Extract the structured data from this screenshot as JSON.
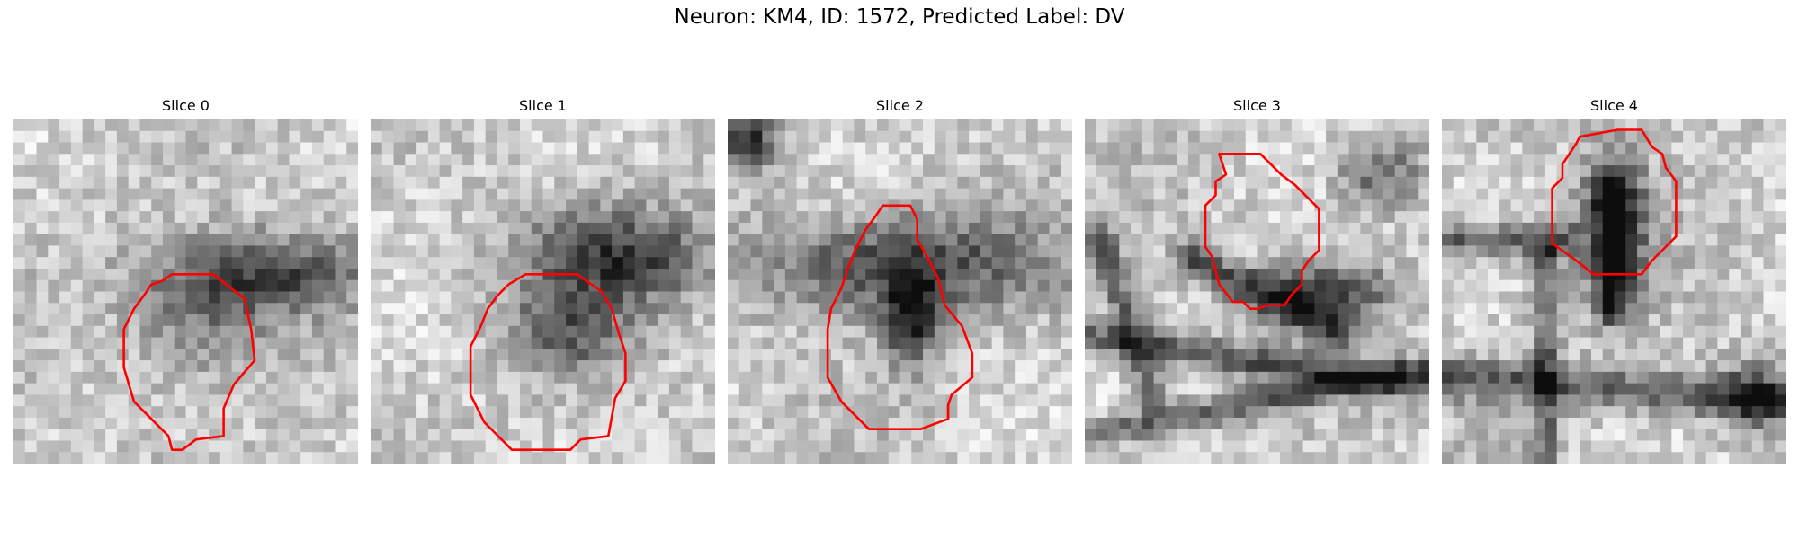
{
  "figure": {
    "title": "Neuron: KM4, ID: 1572, Predicted Label: DV"
  },
  "panels": [
    {
      "title": "Slice 0",
      "seed": 11,
      "dark_blobs": [
        [
          0.7,
          0.45,
          0.3,
          0.12,
          0.55
        ],
        [
          0.55,
          0.62,
          0.2,
          0.15,
          0.3
        ]
      ],
      "ridges": [],
      "contour": [
        [
          0.46,
          0.45
        ],
        [
          0.58,
          0.45
        ],
        [
          0.67,
          0.52
        ],
        [
          0.69,
          0.61
        ],
        [
          0.7,
          0.7
        ],
        [
          0.64,
          0.77
        ],
        [
          0.61,
          0.84
        ],
        [
          0.61,
          0.92
        ],
        [
          0.53,
          0.93
        ],
        [
          0.49,
          0.96
        ],
        [
          0.46,
          0.96
        ],
        [
          0.45,
          0.92
        ],
        [
          0.35,
          0.82
        ],
        [
          0.32,
          0.72
        ],
        [
          0.32,
          0.61
        ],
        [
          0.35,
          0.55
        ],
        [
          0.38,
          0.51
        ],
        [
          0.4,
          0.48
        ],
        [
          0.43,
          0.47
        ]
      ]
    },
    {
      "title": "Slice 1",
      "seed": 23,
      "dark_blobs": [
        [
          0.73,
          0.4,
          0.28,
          0.14,
          0.55
        ],
        [
          0.57,
          0.62,
          0.17,
          0.13,
          0.4
        ]
      ],
      "ridges": [],
      "contour": [
        [
          0.45,
          0.45
        ],
        [
          0.6,
          0.45
        ],
        [
          0.67,
          0.5
        ],
        [
          0.7,
          0.55
        ],
        [
          0.72,
          0.62
        ],
        [
          0.74,
          0.68
        ],
        [
          0.74,
          0.76
        ],
        [
          0.71,
          0.81
        ],
        [
          0.69,
          0.92
        ],
        [
          0.61,
          0.93
        ],
        [
          0.58,
          0.96
        ],
        [
          0.41,
          0.96
        ],
        [
          0.33,
          0.88
        ],
        [
          0.29,
          0.8
        ],
        [
          0.29,
          0.66
        ],
        [
          0.32,
          0.6
        ],
        [
          0.34,
          0.55
        ],
        [
          0.37,
          0.51
        ],
        [
          0.4,
          0.48
        ]
      ]
    },
    {
      "title": "Slice 2",
      "seed": 37,
      "dark_blobs": [
        [
          0.5,
          0.42,
          0.42,
          0.14,
          0.55
        ],
        [
          0.53,
          0.58,
          0.08,
          0.14,
          0.6
        ],
        [
          0.06,
          0.06,
          0.08,
          0.08,
          0.6
        ]
      ],
      "ridges": [],
      "contour": [
        [
          0.45,
          0.25
        ],
        [
          0.53,
          0.25
        ],
        [
          0.55,
          0.29
        ],
        [
          0.55,
          0.35
        ],
        [
          0.58,
          0.4
        ],
        [
          0.61,
          0.46
        ],
        [
          0.63,
          0.54
        ],
        [
          0.68,
          0.6
        ],
        [
          0.71,
          0.68
        ],
        [
          0.71,
          0.75
        ],
        [
          0.65,
          0.8
        ],
        [
          0.64,
          0.83
        ],
        [
          0.64,
          0.87
        ],
        [
          0.56,
          0.9
        ],
        [
          0.41,
          0.9
        ],
        [
          0.37,
          0.86
        ],
        [
          0.33,
          0.82
        ],
        [
          0.29,
          0.75
        ],
        [
          0.29,
          0.61
        ],
        [
          0.3,
          0.55
        ],
        [
          0.33,
          0.49
        ],
        [
          0.35,
          0.43
        ],
        [
          0.37,
          0.38
        ],
        [
          0.4,
          0.32
        ],
        [
          0.43,
          0.28
        ]
      ]
    },
    {
      "title": "Slice 3",
      "seed": 51,
      "dark_blobs": [
        [
          0.7,
          0.5,
          0.2,
          0.08,
          0.55
        ],
        [
          0.85,
          0.15,
          0.12,
          0.1,
          0.4
        ]
      ],
      "ridges": [
        [
          0.0,
          0.63,
          1.0,
          0.78,
          0.45,
          0.05
        ],
        [
          0.0,
          0.92,
          1.0,
          0.72,
          0.45,
          0.04
        ],
        [
          0.05,
          0.35,
          0.2,
          0.8,
          0.4,
          0.05
        ],
        [
          0.3,
          0.4,
          0.75,
          0.62,
          0.45,
          0.05
        ]
      ],
      "contour": [
        [
          0.39,
          0.1
        ],
        [
          0.51,
          0.1
        ],
        [
          0.57,
          0.16
        ],
        [
          0.61,
          0.19
        ],
        [
          0.68,
          0.26
        ],
        [
          0.68,
          0.38
        ],
        [
          0.65,
          0.41
        ],
        [
          0.63,
          0.44
        ],
        [
          0.63,
          0.48
        ],
        [
          0.6,
          0.51
        ],
        [
          0.58,
          0.54
        ],
        [
          0.53,
          0.54
        ],
        [
          0.5,
          0.55
        ],
        [
          0.48,
          0.55
        ],
        [
          0.46,
          0.53
        ],
        [
          0.43,
          0.53
        ],
        [
          0.39,
          0.48
        ],
        [
          0.38,
          0.44
        ],
        [
          0.37,
          0.4
        ],
        [
          0.35,
          0.37
        ],
        [
          0.35,
          0.25
        ],
        [
          0.38,
          0.22
        ],
        [
          0.38,
          0.18
        ],
        [
          0.41,
          0.16
        ]
      ]
    },
    {
      "title": "Slice 4",
      "seed": 67,
      "dark_blobs": [
        [
          0.5,
          0.3,
          0.1,
          0.22,
          0.55
        ],
        [
          0.9,
          0.8,
          0.1,
          0.1,
          0.4
        ]
      ],
      "ridges": [
        [
          0.0,
          0.35,
          0.35,
          0.35,
          0.45,
          0.05
        ],
        [
          0.0,
          0.75,
          1.0,
          0.82,
          0.45,
          0.06
        ],
        [
          0.3,
          0.4,
          0.3,
          1.0,
          0.4,
          0.04
        ],
        [
          0.5,
          0.2,
          0.5,
          0.55,
          0.5,
          0.05
        ]
      ],
      "contour": [
        [
          0.4,
          0.05
        ],
        [
          0.51,
          0.03
        ],
        [
          0.58,
          0.03
        ],
        [
          0.61,
          0.08
        ],
        [
          0.64,
          0.1
        ],
        [
          0.65,
          0.14
        ],
        [
          0.68,
          0.18
        ],
        [
          0.68,
          0.34
        ],
        [
          0.61,
          0.41
        ],
        [
          0.58,
          0.45
        ],
        [
          0.44,
          0.45
        ],
        [
          0.39,
          0.41
        ],
        [
          0.32,
          0.36
        ],
        [
          0.32,
          0.2
        ],
        [
          0.35,
          0.17
        ],
        [
          0.35,
          0.13
        ],
        [
          0.37,
          0.1
        ],
        [
          0.39,
          0.07
        ]
      ]
    }
  ],
  "style": {
    "contour_color": "#ff0000"
  }
}
